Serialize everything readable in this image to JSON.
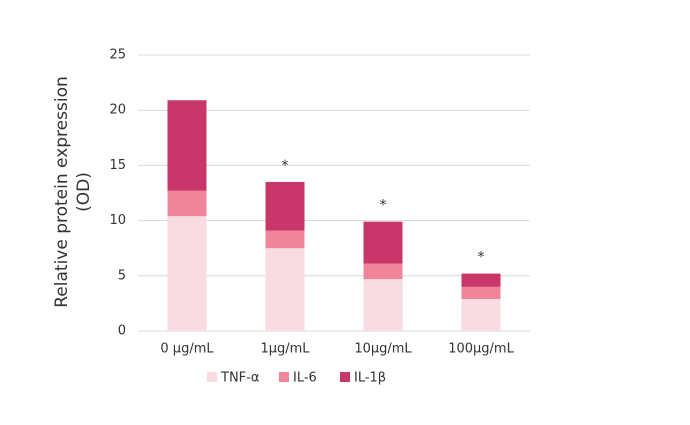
{
  "chart_data": {
    "type": "stacked_bar",
    "ylabel": [
      "Relative protein expression",
      "(OD)"
    ],
    "categories": [
      "0 µg/mL",
      "1µg/mL",
      "10µg/mL",
      "100µg/mL"
    ],
    "series": [
      {
        "name": "TNF-α",
        "color": "#f9dce2",
        "values": [
          10.4,
          7.5,
          4.7,
          2.9
        ]
      },
      {
        "name": "IL-6",
        "color": "#f08599",
        "values": [
          2.3,
          1.6,
          1.4,
          1.1
        ]
      },
      {
        "name": "IL-1β",
        "color": "#c9376a",
        "values": [
          8.2,
          4.4,
          3.8,
          1.2
        ]
      }
    ],
    "annotations": [
      null,
      "*",
      "*",
      "*"
    ],
    "ylim": [
      0,
      25
    ],
    "yticks": [
      0,
      5,
      10,
      15,
      20,
      25
    ],
    "grid": true,
    "legend": "bottom"
  }
}
